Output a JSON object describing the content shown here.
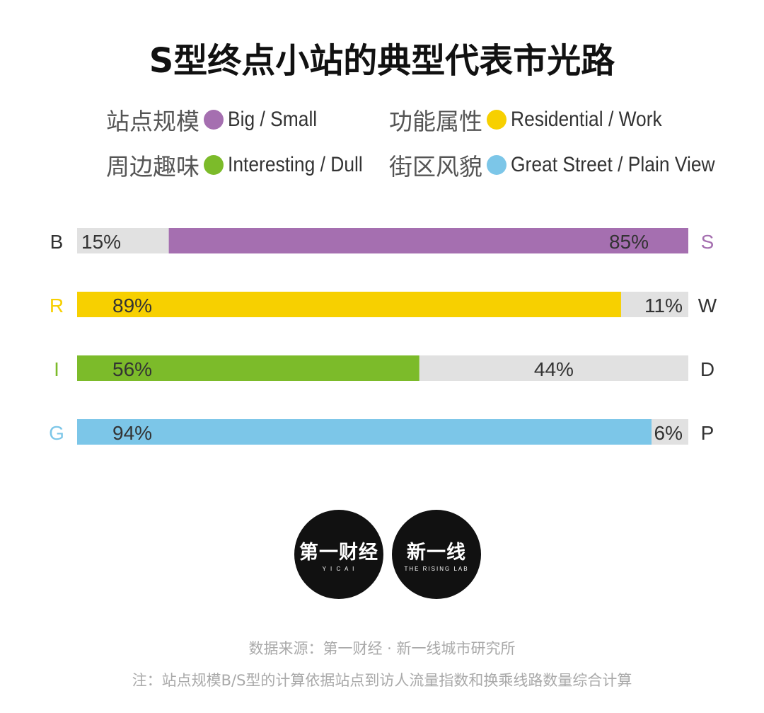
{
  "title": "S型终点小站的典型代表市光路",
  "legend": [
    {
      "cn": "站点规模",
      "en": "Big / Small",
      "color": "#a56fb0"
    },
    {
      "cn": "功能属性",
      "en": "Residential / Work",
      "color": "#f7d000"
    },
    {
      "cn": "周边趣味",
      "en": "Interesting / Dull",
      "color": "#7cbb2a"
    },
    {
      "cn": "街区风貌",
      "en": "Great Street / Plain View",
      "color": "#7cc6e8"
    }
  ],
  "chart_data": {
    "type": "bar",
    "orientation": "horizontal-stacked-100",
    "rows": [
      {
        "left_label": "B",
        "right_label": "S",
        "left_value": 15,
        "right_value": 85,
        "colored_side": "right",
        "color": "#a56fb0"
      },
      {
        "left_label": "R",
        "right_label": "W",
        "left_value": 89,
        "right_value": 11,
        "colored_side": "left",
        "color": "#f7d000"
      },
      {
        "left_label": "I",
        "right_label": "D",
        "left_value": 56,
        "right_value": 44,
        "colored_side": "left",
        "color": "#7cbb2a"
      },
      {
        "left_label": "G",
        "right_label": "P",
        "left_value": 94,
        "right_value": 6,
        "colored_side": "left",
        "color": "#7cc6e8"
      }
    ],
    "value_suffix": "%",
    "neutral_color": "#e1e1e1"
  },
  "logos": [
    {
      "name": "第一财经",
      "sub": "Y I C A I"
    },
    {
      "name": "新一线",
      "sub": "THE RISING LAB"
    }
  ],
  "footer": {
    "source": "数据来源：第一财经 · 新一线城市研究所",
    "note": "注：站点规模B/S型的计算依据站点到访人流量指数和换乘线路数量综合计算"
  }
}
